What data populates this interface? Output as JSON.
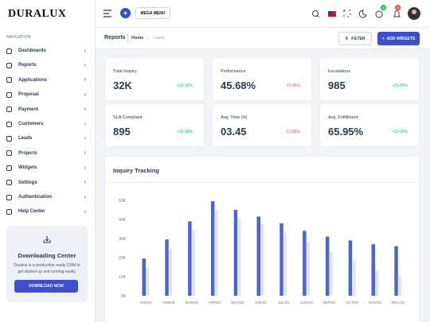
{
  "brand": "DURALUX",
  "header": {
    "mega_menu": "MEGA MENU",
    "badges": [
      "3",
      "3"
    ]
  },
  "sidebar": {
    "section": "NAVIGATION",
    "items": [
      "Dashboards",
      "Reports",
      "Applications",
      "Proposal",
      "Payment",
      "Customers",
      "Leads",
      "Projects",
      "Widgets",
      "Settings",
      "Authentication",
      "Help Center"
    ],
    "promo": {
      "title": "Downloading Center",
      "text": "Duralux is a production ready CRM to get started up and running easily.",
      "button": "DOWNLOAD NOW"
    }
  },
  "breadcrumb": {
    "title": "Reports",
    "home": "Home",
    "current": "Leads"
  },
  "actions": {
    "filter": "FILTER",
    "add": "ADD WIDGETS"
  },
  "stats": [
    {
      "label": "Total Inquiry",
      "value": "32K",
      "change": "+20.36%"
    },
    {
      "label": "Performance",
      "value": "45.68%",
      "change": "-10.46%"
    },
    {
      "label": "Escalations",
      "value": "985",
      "change": "+20.46%"
    },
    {
      "label": "SLA Compliant",
      "value": "895",
      "change": "+16.08%"
    },
    {
      "label": "Avg. Time (H)",
      "value": "03.45",
      "change": "-12.86%"
    },
    {
      "label": "Avg. Fulfillment",
      "value": "65.95%",
      "change": "+20.05%"
    }
  ],
  "chart_data": {
    "type": "bar",
    "title": "Inquiry Tracking",
    "categories": [
      "JAN/23",
      "FEB/23",
      "MAR/23",
      "APR/23",
      "MAY/23",
      "JUN/23",
      "JUL/23",
      "AUG/23",
      "SEP/23",
      "OCT/23",
      "NOV/23",
      "DEC/23"
    ],
    "series": [
      {
        "color": "#4f63d2",
        "values": [
          19500,
          29500,
          39000,
          49500,
          45000,
          41500,
          38000,
          34000,
          31000,
          29000,
          27000,
          26000
        ]
      },
      {
        "color": "#e3e6ef",
        "values": [
          14500,
          24500,
          34500,
          44500,
          40500,
          37500,
          33000,
          28000,
          23000,
          18500,
          13000,
          10500
        ]
      }
    ],
    "ylim": [
      0,
      50000
    ],
    "yticks": [
      {
        "value": 0,
        "label": "0K"
      },
      {
        "value": 10000,
        "label": "10K"
      },
      {
        "value": 20000,
        "label": "20K"
      },
      {
        "value": 30000,
        "label": "30K"
      },
      {
        "value": 40000,
        "label": "40K"
      },
      {
        "value": 50000,
        "label": "50K"
      }
    ]
  }
}
